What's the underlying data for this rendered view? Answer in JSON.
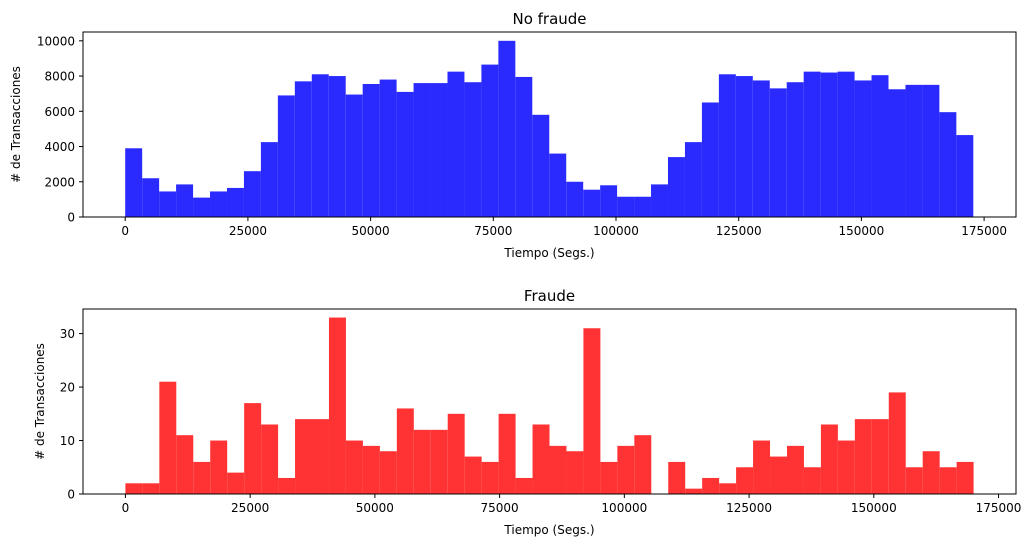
{
  "chart_data": [
    {
      "type": "bar",
      "title": "No fraude",
      "xlabel": "Tiempo (Segs.)",
      "ylabel": "# de Transacciones",
      "color": "#2a2aff",
      "grid": false,
      "xlim": [
        -8600,
        181500
      ],
      "ylim": [
        0,
        10500
      ],
      "xticks": [
        0,
        25000,
        50000,
        75000,
        100000,
        125000,
        150000,
        175000
      ],
      "yticks": [
        0,
        2000,
        4000,
        6000,
        8000,
        10000
      ],
      "bins": {
        "start": 0,
        "width": 3456
      },
      "values": [
        3900,
        2200,
        1450,
        1850,
        1100,
        1450,
        1650,
        2600,
        4250,
        6900,
        7700,
        8100,
        8000,
        6950,
        7550,
        7800,
        7100,
        7600,
        7600,
        8250,
        7650,
        8650,
        10000,
        7950,
        5800,
        3600,
        2000,
        1550,
        1800,
        1150,
        1150,
        1850,
        3400,
        4250,
        6500,
        8100,
        8000,
        7750,
        7300,
        7650,
        8250,
        8200,
        8250,
        7750,
        8050,
        7250,
        7500,
        7500,
        5950,
        4650
      ]
    },
    {
      "type": "bar",
      "title": "Fraude",
      "xlabel": "Tiempo (Segs.)",
      "ylabel": "# de Transacciones",
      "color": "#ff3333",
      "grid": false,
      "xlim": [
        -8500,
        178500
      ],
      "ylim": [
        0,
        34.6
      ],
      "xticks": [
        0,
        25000,
        50000,
        75000,
        100000,
        125000,
        150000,
        175000
      ],
      "yticks": [
        0,
        10,
        20,
        30
      ],
      "bins": {
        "start": 0,
        "width": 3400
      },
      "values": [
        2,
        2,
        21,
        11,
        6,
        10,
        4,
        17,
        13,
        3,
        14,
        14,
        33,
        10,
        9,
        8,
        16,
        12,
        12,
        15,
        7,
        6,
        15,
        3,
        13,
        9,
        8,
        31,
        6,
        9,
        11,
        0,
        6,
        1,
        3,
        2,
        5,
        10,
        7,
        9,
        5,
        13,
        10,
        14,
        14,
        19,
        5,
        8,
        5,
        6
      ]
    }
  ]
}
